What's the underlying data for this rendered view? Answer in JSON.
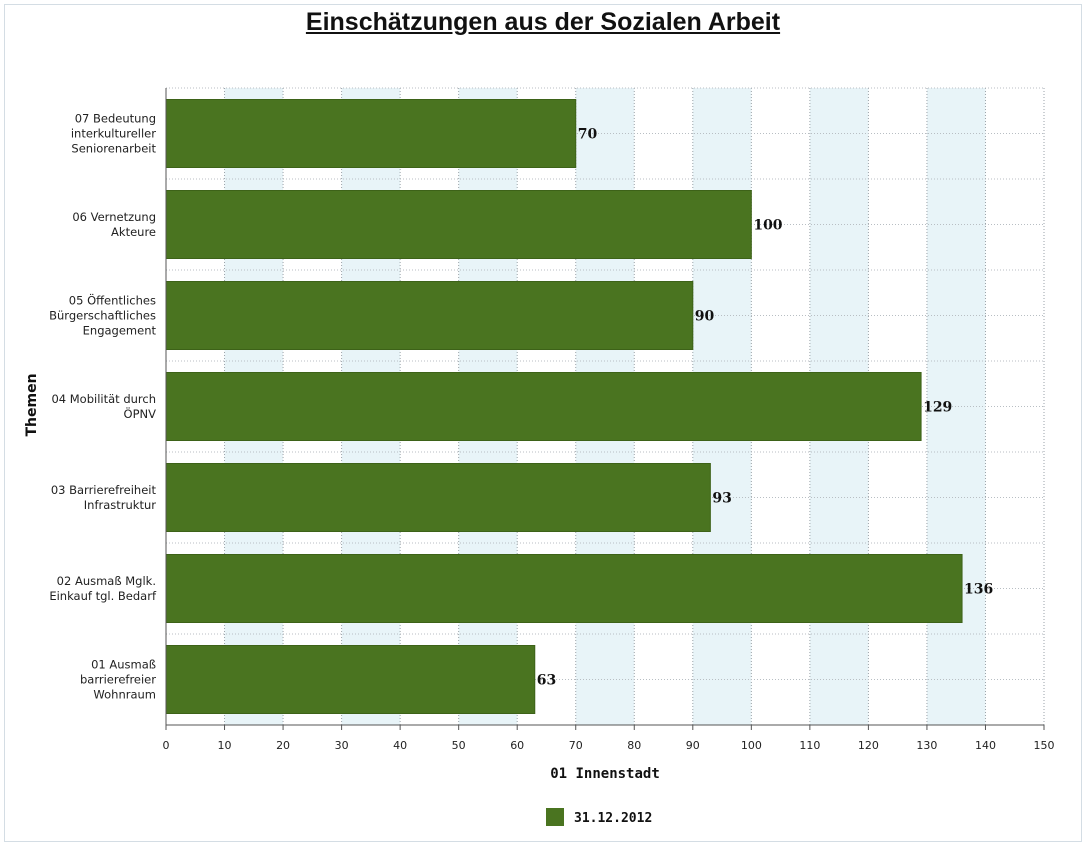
{
  "chart_data": {
    "type": "bar",
    "orientation": "horizontal",
    "title": "Einschätzungen aus der Sozialen Arbeit",
    "xlabel": "01 Innenstadt",
    "ylabel": "Themen",
    "xlim": [
      0,
      150
    ],
    "x_ticks": [
      "0",
      "10",
      "20",
      "30",
      "40",
      "50",
      "60",
      "70",
      "80",
      "90",
      "100",
      "110",
      "120",
      "130",
      "140",
      "150"
    ],
    "grid": true,
    "legend_position": "bottom",
    "categories": [
      [
        "07 Bedeutung",
        "interkultureller",
        "Seniorenarbeit"
      ],
      [
        "06 Vernetzung",
        "Akteure"
      ],
      [
        "05 Öffentliches",
        "Bürgerschaftliches",
        "Engagement"
      ],
      [
        "04 Mobilität durch",
        "ÖPNV"
      ],
      [
        "03 Barrierefreiheit",
        "Infrastruktur"
      ],
      [
        "02 Ausmaß Mglk.",
        "Einkauf tgl. Bedarf"
      ],
      [
        "01 Ausmaß",
        "barrierefreier",
        "Wohnraum"
      ]
    ],
    "series": [
      {
        "name": "31.12.2012",
        "color": "#4a7420",
        "values": [
          70,
          100,
          90,
          129,
          93,
          136,
          63
        ]
      }
    ],
    "band_color": "#e8f4f8"
  }
}
